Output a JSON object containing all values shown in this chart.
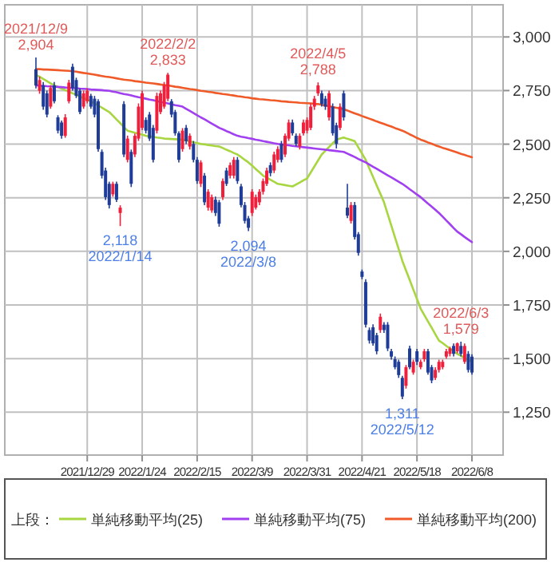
{
  "chart_data": {
    "type": "candlestick",
    "categories": [
      null,
      null,
      null,
      null,
      null,
      null,
      null,
      null,
      null,
      null,
      null,
      null,
      null,
      null,
      null,
      null,
      null,
      null,
      null,
      null,
      null,
      null,
      "2021/12/29",
      null,
      null,
      null,
      null,
      null,
      null,
      null,
      null,
      null,
      null,
      null,
      null,
      null,
      null,
      "2022/1/24",
      null,
      null,
      null,
      null,
      null,
      null,
      null,
      null,
      null,
      null,
      null,
      null,
      null,
      null,
      "2022/2/15",
      null,
      null,
      null,
      null,
      null,
      null,
      null,
      null,
      null,
      null,
      null,
      null,
      null,
      null,
      "2022/3/9",
      null,
      null,
      null,
      null,
      null,
      null,
      null,
      null,
      null,
      null,
      null,
      null,
      null,
      null,
      "2022/3/31",
      null,
      null,
      null,
      null,
      null,
      null,
      null,
      null,
      null,
      null,
      null,
      null,
      null,
      null,
      "2022/4/21",
      null,
      null,
      null,
      null,
      null,
      null,
      null,
      null,
      null,
      null,
      null,
      null,
      null,
      null,
      "2022/5/18",
      null,
      null,
      null,
      null,
      null,
      null,
      null,
      null,
      null,
      null,
      null,
      null,
      null,
      null,
      "2022/6/8",
      null,
      null,
      null,
      null,
      null,
      null,
      null,
      null
    ],
    "ohlc": [
      null,
      null,
      null,
      null,
      null,
      null,
      null,
      null,
      [
        2849,
        2904,
        2760,
        2774
      ],
      [
        2749,
        2815,
        2735,
        2799
      ],
      [
        2774,
        2790,
        2660,
        2675
      ],
      [
        2737,
        2750,
        2625,
        2638
      ],
      [
        2675,
        2775,
        2665,
        2762
      ],
      [
        2774,
        2790,
        2690,
        2700
      ],
      [
        2625,
        2635,
        2550,
        2563
      ],
      [
        2601,
        2610,
        2525,
        2539
      ],
      [
        2539,
        2640,
        2530,
        2625
      ],
      [
        2700,
        2800,
        2690,
        2787
      ],
      [
        2861,
        2875,
        2750,
        2762
      ],
      [
        2799,
        2810,
        2715,
        2725
      ],
      [
        2749,
        2760,
        2640,
        2650
      ],
      [
        2675,
        2750,
        2665,
        2737
      ],
      [
        2700,
        2760,
        2690,
        2749
      ],
      [
        2725,
        2735,
        2665,
        2675
      ],
      [
        2712,
        2725,
        2625,
        2638
      ],
      [
        2700,
        2710,
        2465,
        2477
      ],
      [
        2464,
        2475,
        2340,
        2353
      ],
      [
        2377,
        2390,
        2240,
        2253
      ],
      [
        2315,
        2325,
        2200,
        2216
      ],
      [
        2266,
        2325,
        2255,
        2315
      ],
      [
        2315,
        2325,
        2230,
        2241
      ],
      [
        2179,
        2215,
        2118,
        2204
      ],
      [
        2687,
        2700,
        2440,
        2452
      ],
      [
        2427,
        2540,
        2415,
        2526
      ],
      [
        2464,
        2475,
        2300,
        2315
      ],
      [
        2452,
        2550,
        2440,
        2539
      ],
      [
        2526,
        2690,
        2515,
        2675
      ],
      [
        2576,
        2750,
        2565,
        2737
      ],
      [
        2613,
        2625,
        2550,
        2563
      ],
      [
        2638,
        2650,
        2515,
        2526
      ],
      [
        2576,
        2590,
        2415,
        2427
      ],
      [
        2563,
        2740,
        2550,
        2725
      ],
      [
        2650,
        2750,
        2640,
        2737
      ],
      [
        2675,
        2790,
        2665,
        2774
      ],
      [
        2712,
        2833,
        2700,
        2824
      ],
      [
        2700,
        2710,
        2625,
        2638
      ],
      [
        2650,
        2660,
        2540,
        2551
      ],
      [
        2551,
        2560,
        2415,
        2427
      ],
      [
        2477,
        2575,
        2465,
        2563
      ],
      [
        2576,
        2590,
        2500,
        2514
      ],
      [
        2489,
        2550,
        2475,
        2539
      ],
      [
        2501,
        2515,
        2415,
        2427
      ],
      [
        2427,
        2440,
        2315,
        2328
      ],
      [
        2315,
        2425,
        2300,
        2415
      ],
      [
        2353,
        2365,
        2215,
        2229
      ],
      [
        2204,
        2290,
        2190,
        2278
      ],
      [
        2191,
        2265,
        2180,
        2253
      ],
      [
        2241,
        2255,
        2165,
        2179
      ],
      [
        2229,
        2240,
        2115,
        2129
      ],
      [
        2253,
        2340,
        2240,
        2328
      ],
      [
        2377,
        2390,
        2305,
        2315
      ],
      [
        2353,
        2415,
        2340,
        2402
      ],
      [
        2353,
        2440,
        2340,
        2427
      ],
      [
        2427,
        2440,
        2315,
        2328
      ],
      [
        2303,
        2315,
        2205,
        2216
      ],
      [
        2216,
        2230,
        2130,
        2142
      ],
      [
        2154,
        2165,
        2094,
        2110
      ],
      [
        2179,
        2290,
        2165,
        2278
      ],
      [
        2204,
        2265,
        2195,
        2253
      ],
      [
        2229,
        2290,
        2215,
        2278
      ],
      [
        2278,
        2340,
        2265,
        2328
      ],
      [
        2315,
        2390,
        2305,
        2377
      ],
      [
        2402,
        2415,
        2350,
        2365
      ],
      [
        2377,
        2465,
        2365,
        2452
      ],
      [
        2427,
        2490,
        2415,
        2477
      ],
      [
        2501,
        2515,
        2415,
        2427
      ],
      [
        2452,
        2550,
        2440,
        2539
      ],
      [
        2526,
        2615,
        2515,
        2601
      ],
      [
        2601,
        2615,
        2540,
        2551
      ],
      [
        2539,
        2550,
        2490,
        2501
      ],
      [
        2489,
        2550,
        2475,
        2539
      ],
      [
        2551,
        2615,
        2540,
        2601
      ],
      [
        2563,
        2625,
        2550,
        2613
      ],
      [
        2576,
        2690,
        2565,
        2675
      ],
      [
        2675,
        2725,
        2660,
        2712
      ],
      [
        2737,
        2788,
        2725,
        2774
      ],
      [
        2737,
        2750,
        2675,
        2687
      ],
      [
        2712,
        2725,
        2660,
        2675
      ],
      [
        2625,
        2750,
        2610,
        2737
      ],
      [
        2675,
        2690,
        2540,
        2551
      ],
      [
        2588,
        2600,
        2480,
        2501
      ],
      [
        2576,
        2690,
        2565,
        2675
      ],
      [
        2737,
        2750,
        2610,
        2625
      ],
      [
        2204,
        2315,
        2155,
        2167
      ],
      [
        2142,
        2230,
        2130,
        2216
      ],
      [
        2216,
        2230,
        2055,
        2067
      ],
      [
        2080,
        2090,
        1980,
        1993
      ],
      [
        1906,
        1915,
        1870,
        1881
      ],
      [
        1857,
        1870,
        1645,
        1658
      ],
      [
        1633,
        1645,
        1570,
        1584
      ],
      [
        1646,
        1660,
        1560,
        1571
      ],
      [
        1609,
        1620,
        1520,
        1534
      ],
      [
        1633,
        1710,
        1620,
        1695
      ],
      [
        1658,
        1670,
        1620,
        1633
      ],
      [
        1658,
        1670,
        1535,
        1547
      ],
      [
        1534,
        1545,
        1495,
        1509
      ],
      [
        1497,
        1510,
        1450,
        1460
      ],
      [
        1485,
        1495,
        1410,
        1423
      ],
      [
        1410,
        1420,
        1311,
        1323
      ],
      [
        1373,
        1470,
        1360,
        1460
      ],
      [
        1547,
        1560,
        1450,
        1460
      ],
      [
        1435,
        1495,
        1425,
        1485
      ],
      [
        1534,
        1545,
        1470,
        1485
      ],
      [
        1460,
        1495,
        1450,
        1485
      ],
      [
        1497,
        1545,
        1485,
        1534
      ],
      [
        1534,
        1545,
        1425,
        1435
      ],
      [
        1460,
        1470,
        1385,
        1398
      ],
      [
        1410,
        1460,
        1400,
        1447
      ],
      [
        1447,
        1495,
        1435,
        1485
      ],
      [
        1460,
        1495,
        1450,
        1485
      ],
      [
        1509,
        1545,
        1500,
        1534
      ],
      [
        1522,
        1555,
        1510,
        1547
      ],
      [
        1559,
        1570,
        1510,
        1522
      ],
      [
        1534,
        1575,
        1525,
        1571
      ],
      [
        1559,
        1579,
        1510,
        1522
      ],
      [
        1485,
        1570,
        1475,
        1559
      ],
      [
        1522,
        1535,
        1435,
        1447
      ],
      [
        1509,
        1520,
        1425,
        1435
      ],
      null,
      null,
      null,
      null,
      null,
      null,
      null,
      null
    ],
    "colors": [
      null,
      null,
      null,
      null,
      null,
      null,
      null,
      null,
      "#1f3c98",
      "#f0203c",
      "#1f3c98",
      "#1f3c98",
      "#f0203c",
      "#1f3c98",
      "#1f3c98",
      "#1f3c98",
      "#f0203c",
      "#f0203c",
      "#1f3c98",
      "#1f3c98",
      "#1f3c98",
      "#f0203c",
      "#f0203c",
      "#1f3c98",
      "#1f3c98",
      "#1f3c98",
      "#1f3c98",
      "#1f3c98",
      "#1f3c98",
      "#f0203c",
      "#1f3c98",
      "#f0203c",
      "#1f3c98",
      "#f0203c",
      "#1f3c98",
      "#f0203c",
      "#f0203c",
      "#f0203c",
      "#1f3c98",
      "#1f3c98",
      "#1f3c98",
      "#f0203c",
      "#f0203c",
      "#f0203c",
      "#f0203c",
      "#1f3c98",
      "#1f3c98",
      "#1f3c98",
      "#f0203c",
      "#1f3c98",
      "#f0203c",
      "#1f3c98",
      "#1f3c98",
      "#f0203c",
      "#1f3c98",
      "#f0203c",
      "#f0203c",
      "#1f3c98",
      "#1f3c98",
      "#f0203c",
      "#1f3c98",
      "#f0203c",
      "#f0203c",
      "#1f3c98",
      "#1f3c98",
      "#1f3c98",
      "#1f3c98",
      "#f0203c",
      "#f0203c",
      "#f0203c",
      "#f0203c",
      "#f0203c",
      "#1f3c98",
      "#f0203c",
      "#f0203c",
      "#1f3c98",
      "#f0203c",
      "#f0203c",
      "#1f3c98",
      "#1f3c98",
      "#f0203c",
      "#f0203c",
      "#f0203c",
      "#f0203c",
      "#f0203c",
      "#f0203c",
      "#1f3c98",
      "#1f3c98",
      "#f0203c",
      "#1f3c98",
      "#1f3c98",
      "#f0203c",
      "#1f3c98",
      "#1f3c98",
      "#f0203c",
      "#1f3c98",
      "#1f3c98",
      "#1f3c98",
      "#1f3c98",
      "#1f3c98",
      "#1f3c98",
      "#1f3c98",
      "#f0203c",
      "#1f3c98",
      "#1f3c98",
      "#1f3c98",
      "#1f3c98",
      "#1f3c98",
      "#1f3c98",
      "#f0203c",
      "#1f3c98",
      "#f0203c",
      "#1f3c98",
      "#f0203c",
      "#f0203c",
      "#1f3c98",
      "#1f3c98",
      "#f0203c",
      "#f0203c",
      "#f0203c",
      "#f0203c",
      "#f0203c",
      "#1f3c98",
      "#f0203c",
      "#1f3c98",
      "#f0203c",
      "#1f3c98",
      "#1f3c98",
      null,
      null,
      null,
      null,
      null,
      null,
      null,
      null
    ],
    "series": [
      {
        "name": "単純移動平均(25)",
        "type": "line",
        "color": "#a8d640",
        "values": [
          null,
          null,
          null,
          null,
          null,
          null,
          null,
          null,
          2824,
          2814,
          2804,
          2794,
          2784,
          2774,
          2767,
          2759,
          2752,
          2744,
          2737,
          2730,
          2722,
          2715,
          2707,
          2700,
          2690,
          2680,
          2670,
          2660,
          2650,
          2633,
          2615,
          2598,
          2580,
          2563,
          2558,
          2553,
          2549,
          2544,
          2539,
          2536,
          2534,
          2531,
          2529,
          2526,
          2525,
          2524,
          2523,
          2522,
          2521,
          2517,
          2513,
          2509,
          2505,
          2501,
          2499,
          2496,
          2494,
          2491,
          2489,
          2482,
          2474,
          2467,
          2459,
          2452,
          2440,
          2427,
          2415,
          2400,
          2384,
          2369,
          2353,
          2344,
          2334,
          2325,
          2315,
          2312,
          2309,
          2306,
          2303,
          2312,
          2321,
          2331,
          2340,
          2368,
          2396,
          2424,
          2452,
          2469,
          2487,
          2504,
          2521,
          2526,
          2531,
          2525,
          2520,
          2514,
          2485,
          2456,
          2427,
          2387,
          2348,
          2308,
          2269,
          2229,
          2174,
          2120,
          2065,
          2011,
          1956,
          1911,
          1867,
          1822,
          1778,
          1733,
          1703,
          1673,
          1644,
          1614,
          1584,
          1572,
          1559,
          1547,
          1534,
          1522,
          1513,
          1504,
          1494,
          1485,
          null,
          null,
          null,
          null,
          null,
          null,
          null,
          null
        ]
      },
      {
        "name": "単純移動平均(75)",
        "type": "line",
        "color": "#a040f0",
        "values": [
          null,
          null,
          null,
          null,
          null,
          null,
          null,
          null,
          2774,
          2773,
          2772,
          2770,
          2769,
          2768,
          2767,
          2766,
          2764,
          2763,
          2762,
          2761,
          2759,
          2758,
          2757,
          2755,
          2754,
          2753,
          2752,
          2750,
          2749,
          2745,
          2742,
          2738,
          2734,
          2731,
          2727,
          2723,
          2719,
          2716,
          2712,
          2708,
          2705,
          2701,
          2697,
          2694,
          2690,
          2686,
          2682,
          2679,
          2675,
          2665,
          2655,
          2645,
          2635,
          2625,
          2616,
          2606,
          2596,
          2586,
          2576,
          2569,
          2561,
          2554,
          2546,
          2539,
          2535,
          2532,
          2528,
          2525,
          2521,
          2518,
          2514,
          2511,
          2508,
          2504,
          2501,
          2499,
          2497,
          2495,
          2492,
          2490,
          2488,
          2486,
          2484,
          2482,
          2480,
          2478,
          2476,
          2474,
          2472,
          2470,
          2468,
          2466,
          2464,
          2456,
          2448,
          2440,
          2431,
          2423,
          2415,
          2405,
          2395,
          2385,
          2375,
          2365,
          2355,
          2345,
          2335,
          2325,
          2315,
          2303,
          2290,
          2278,
          2265,
          2253,
          2238,
          2223,
          2209,
          2194,
          2179,
          2162,
          2144,
          2127,
          2109,
          2092,
          2080,
          2067,
          2055,
          2043,
          null,
          null,
          null,
          null,
          null,
          null,
          null,
          null
        ]
      },
      {
        "name": "単純移動平均(200)",
        "type": "line",
        "color": "#f05a28",
        "values": [
          null,
          null,
          null,
          null,
          null,
          null,
          null,
          null,
          2850,
          2850,
          2848,
          2848,
          2847,
          2846,
          2845,
          2844,
          2843,
          2842,
          2840,
          2838,
          2835,
          2832,
          2830,
          2827,
          2824,
          2821,
          2818,
          2815,
          2813,
          2810,
          2807,
          2804,
          2801,
          2799,
          2797,
          2794,
          2792,
          2790,
          2787,
          2785,
          2783,
          2781,
          2778,
          2776,
          2774,
          2771,
          2768,
          2766,
          2763,
          2760,
          2757,
          2755,
          2752,
          2749,
          2747,
          2744,
          2742,
          2739,
          2737,
          2734,
          2732,
          2729,
          2727,
          2724,
          2722,
          2719,
          2717,
          2714,
          2712,
          2710,
          2709,
          2707,
          2705,
          2704,
          2702,
          2700,
          2699,
          2697,
          2696,
          2695,
          2693,
          2692,
          2691,
          2690,
          2688,
          2687,
          2684,
          2680,
          2677,
          2673,
          2670,
          2667,
          2663,
          2657,
          2650,
          2644,
          2638,
          2631,
          2625,
          2619,
          2613,
          2606,
          2600,
          2594,
          2588,
          2582,
          2575,
          2569,
          2563,
          2555,
          2546,
          2538,
          2529,
          2521,
          2515,
          2508,
          2502,
          2495,
          2489,
          2483,
          2478,
          2472,
          2467,
          2461,
          2455,
          2450,
          2444,
          2439,
          null,
          null,
          null,
          null,
          null,
          null,
          null,
          null
        ]
      }
    ],
    "ylim": [
      1050,
      3150
    ],
    "yticks": [
      {
        "value": 1250,
        "label": "1,250"
      },
      {
        "value": 1500,
        "label": "1,500"
      },
      {
        "value": 1750,
        "label": "1,750"
      },
      {
        "value": 2000,
        "label": "2,000"
      },
      {
        "value": 2250,
        "label": "2,250"
      },
      {
        "value": 2500,
        "label": "2,500"
      },
      {
        "value": 2750,
        "label": "2,750"
      },
      {
        "value": 3000,
        "label": "3,000"
      }
    ],
    "grid": true,
    "legend": "bottom",
    "legend_title": "上段：",
    "annotations": [
      {
        "text": "2021/12/9\n2,904",
        "y": 2904
      },
      {
        "text": "2022/2/2\n2,833",
        "y": 2833
      },
      {
        "text": "2022/4/5\n2,788",
        "y": 2788
      },
      {
        "text": "2022/6/3\n1,579",
        "y": 1579
      },
      {
        "text": "2,118\n2022/1/14",
        "y": 2118
      },
      {
        "text": "2,094\n2022/3/8",
        "y": 2094
      },
      {
        "text": "1,311\n2022/5/12",
        "y": 1311
      }
    ]
  }
}
